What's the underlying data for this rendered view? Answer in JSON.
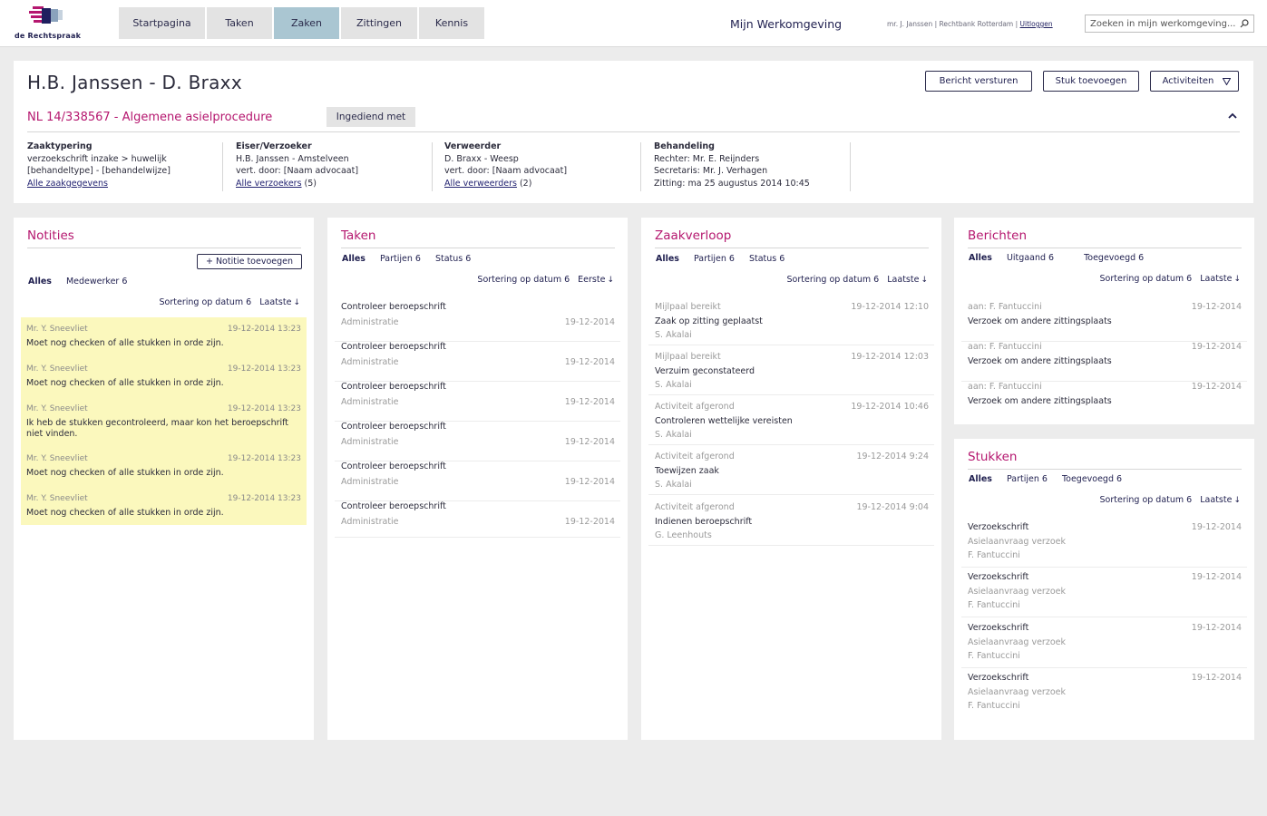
{
  "brand": {
    "logo_text": "de Rechtspraak",
    "colors": {
      "magenta": "#b5176f",
      "navy": "#1f1f4f",
      "active_tab": "#aac6d2",
      "note_bg": "#fbf8bd"
    }
  },
  "nav": {
    "items": [
      {
        "label": "Startpagina",
        "active": false
      },
      {
        "label": "Taken",
        "active": false
      },
      {
        "label": "Zaken",
        "active": true
      },
      {
        "label": "Zittingen",
        "active": false
      },
      {
        "label": "Kennis",
        "active": false
      }
    ],
    "workspace_title": "Mijn Werkomgeving",
    "user": "mr. J. Janssen",
    "court": "Rechtbank Rotterdam",
    "sep": "|",
    "logout": "Uitloggen",
    "search_placeholder": "Zoeken in mijn werkomgeving..."
  },
  "case": {
    "title": "H.B. Janssen - D. Braxx",
    "subtitle": "NL 14/338567 - Algemene asielprocedure",
    "status": "Ingediend met",
    "buttons": {
      "send": "Bericht versturen",
      "add": "Stuk toevoegen",
      "activities": "Activiteiten"
    },
    "columns": [
      {
        "heading": "Zaaktypering",
        "lines": [
          "verzoekschrift inzake > huwelijk",
          "[behandeltype] - [behandelwijze]"
        ],
        "link": "Alle zaakgegevens",
        "link_suffix": ""
      },
      {
        "heading": "Eiser/Verzoeker",
        "lines": [
          "H.B. Janssen - Amstelveen",
          "vert. door: [Naam advocaat]"
        ],
        "link": "Alle verzoekers",
        "link_suffix": " (5)"
      },
      {
        "heading": "Verweerder",
        "lines": [
          "D. Braxx - Weesp",
          "vert. door: [Naam advocaat]"
        ],
        "link": "Alle verweerders",
        "link_suffix": " (2)"
      },
      {
        "heading": "Behandeling",
        "lines": [
          "Rechter: Mr. E. Reijnders",
          "Secretaris: Mr. J. Verhagen",
          "Zitting: ma 25 augustus 2014 10:45"
        ],
        "link": "",
        "link_suffix": ""
      }
    ]
  },
  "notities": {
    "title": "Notities",
    "add_label": "+ Notitie toevoegen",
    "filters": [
      "Alles",
      "Medewerker 6"
    ],
    "sort_by": "Sortering op datum 6",
    "order": "Laatste",
    "notes": [
      {
        "author": "Mr. Y. Sneevliet",
        "time": "19-12-2014 13:23",
        "text": "Moet nog checken of alle stukken in orde zijn."
      },
      {
        "author": "Mr. Y. Sneevliet",
        "time": "19-12-2014 13:23",
        "text": "Moet nog checken of alle stukken in orde zijn."
      },
      {
        "author": "Mr. Y. Sneevliet",
        "time": "19-12-2014 13:23",
        "text": "Ik heb de stukken gecontroleerd, maar kon het beroepschrift niet vinden."
      },
      {
        "author": "Mr. Y. Sneevliet",
        "time": "19-12-2014 13:23",
        "text": "Moet nog checken of alle stukken in orde zijn."
      },
      {
        "author": "Mr. Y. Sneevliet",
        "time": "19-12-2014 13:23",
        "text": "Moet nog checken of alle stukken in orde zijn."
      }
    ]
  },
  "taken": {
    "title": "Taken",
    "filters": [
      "Alles",
      "Partijen 6",
      "Status 6"
    ],
    "sort_by": "Sortering op datum 6",
    "order": "Eerste",
    "items": [
      {
        "title": "Controleer beroepschrift",
        "sub": "Administratie",
        "date": "19-12-2014"
      },
      {
        "title": "Controleer beroepschrift",
        "sub": "Administratie",
        "date": "19-12-2014"
      },
      {
        "title": "Controleer beroepschrift",
        "sub": "Administratie",
        "date": "19-12-2014"
      },
      {
        "title": "Controleer beroepschrift",
        "sub": "Administratie",
        "date": "19-12-2014"
      },
      {
        "title": "Controleer beroepschrift",
        "sub": "Administratie",
        "date": "19-12-2014"
      },
      {
        "title": "Controleer beroepschrift",
        "sub": "Administratie",
        "date": "19-12-2014"
      }
    ]
  },
  "zaakverloop": {
    "title": "Zaakverloop",
    "filters": [
      "Alles",
      "Partijen 6",
      "Status 6"
    ],
    "sort_by": "Sortering op datum 6",
    "order": "Laatste",
    "items": [
      {
        "kind": "Mijlpaal bereikt",
        "time": "19-12-2014 12:10",
        "text": "Zaak op zitting geplaatst",
        "who": "S. Akalai"
      },
      {
        "kind": "Mijlpaal bereikt",
        "time": "19-12-2014 12:03",
        "text": "Verzuim geconstateerd",
        "who": "S. Akalai"
      },
      {
        "kind": "Activiteit afgerond",
        "time": "19-12-2014 10:46",
        "text": "Controleren wettelijke vereisten",
        "who": "S. Akalai"
      },
      {
        "kind": "Activiteit afgerond",
        "time": "19-12-2014 9:24",
        "text": "Toewijzen zaak",
        "who": "S. Akalai"
      },
      {
        "kind": "Activiteit afgerond",
        "time": "19-12-2014 9:04",
        "text": "Indienen beroepschrift",
        "who": "G. Leenhouts"
      }
    ]
  },
  "berichten": {
    "title": "Berichten",
    "filters": [
      "Alles",
      "Uitgaand 6",
      "Toegevoegd 6"
    ],
    "sort_by": "Sortering op datum 6",
    "order": "Laatste",
    "items": [
      {
        "to": "aan: F. Fantuccini",
        "date": "19-12-2014",
        "text": "Verzoek om andere zittingsplaats"
      },
      {
        "to": "aan: F. Fantuccini",
        "date": "19-12-2014",
        "text": "Verzoek om andere zittingsplaats"
      },
      {
        "to": "aan: F. Fantuccini",
        "date": "19-12-2014",
        "text": "Verzoek om andere zittingsplaats"
      }
    ]
  },
  "stukken": {
    "title": "Stukken",
    "filters": [
      "Alles",
      "Partijen 6",
      "Toegevoegd 6"
    ],
    "sort_by": "Sortering op datum 6",
    "order": "Laatste",
    "items": [
      {
        "title": "Verzoekschrift",
        "date": "19-12-2014",
        "sub": "Asielaanvraag verzoek",
        "who": "F. Fantuccini"
      },
      {
        "title": "Verzoekschrift",
        "date": "19-12-2014",
        "sub": "Asielaanvraag verzoek",
        "who": "F. Fantuccini"
      },
      {
        "title": "Verzoekschrift",
        "date": "19-12-2014",
        "sub": "Asielaanvraag verzoek",
        "who": "F. Fantuccini"
      },
      {
        "title": "Verzoekschrift",
        "date": "19-12-2014",
        "sub": "Asielaanvraag verzoek",
        "who": "F. Fantuccini"
      }
    ]
  }
}
